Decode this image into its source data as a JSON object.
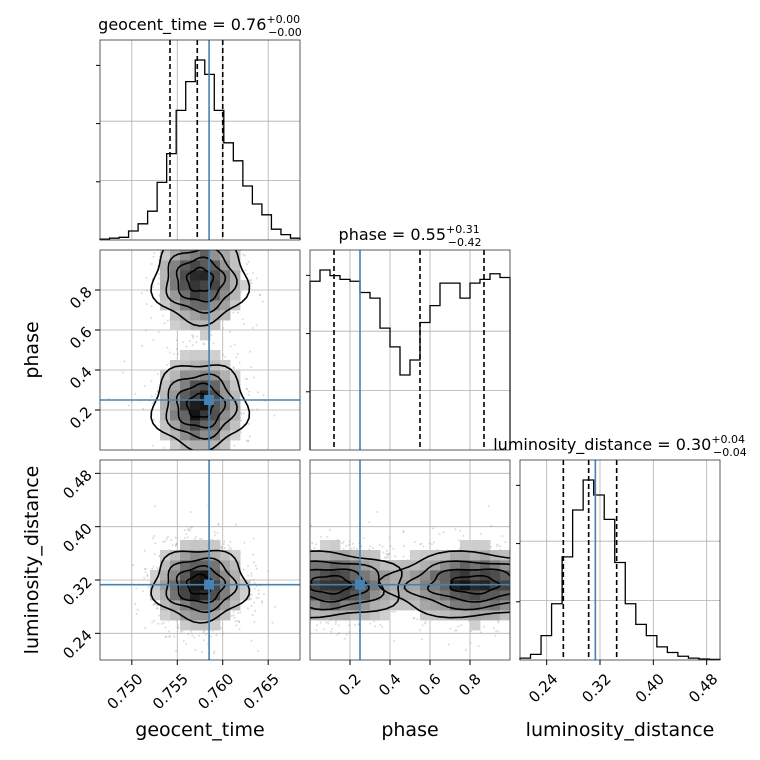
{
  "parameters": [
    {
      "name": "geocent_time",
      "median": "0.76",
      "plus": "+0.00",
      "minus": "−0.00",
      "lim": [
        0.7465,
        0.7685
      ],
      "ticks": [
        "0.750",
        "0.755",
        "0.760",
        "0.765"
      ],
      "tickvals": [
        0.75,
        0.755,
        0.76,
        0.765
      ],
      "truth": 0.7585,
      "quantiles": [
        0.7542,
        0.7572,
        0.76
      ]
    },
    {
      "name": "phase",
      "median": "0.55",
      "plus": "+0.31",
      "minus": "−0.42",
      "lim": [
        0.0,
        1.0
      ],
      "ticks": [
        "0.2",
        "0.4",
        "0.6",
        "0.8"
      ],
      "tickvals": [
        0.2,
        0.4,
        0.6,
        0.8
      ],
      "truth": 0.25,
      "quantiles": [
        0.12,
        0.55,
        0.87
      ]
    },
    {
      "name": "luminosity_distance",
      "median": "0.30",
      "plus": "+0.04",
      "minus": "−0.04",
      "lim": [
        0.2,
        0.5
      ],
      "ticks": [
        "0.24",
        "0.32",
        "0.40",
        "0.48"
      ],
      "tickvals": [
        0.24,
        0.32,
        0.4,
        0.48
      ],
      "truth": 0.313,
      "quantiles": [
        0.265,
        0.303,
        0.345
      ]
    }
  ],
  "chart_data": {
    "type": "corner",
    "colors": {
      "truth": "#4682b4",
      "contour": "#000000",
      "hist": "#000000",
      "grid": "#b0b0b0"
    },
    "grid": true,
    "histograms": [
      {
        "param": "geocent_time",
        "x": [
          0.7475,
          0.7485,
          0.7495,
          0.7505,
          0.7515,
          0.7525,
          0.7535,
          0.7545,
          0.7555,
          0.7565,
          0.7575,
          0.7585,
          0.7595,
          0.7605,
          0.7615,
          0.7625,
          0.7635,
          0.7645,
          0.7655,
          0.7665,
          0.7675
        ],
        "values": [
          0.5,
          1,
          1.5,
          5,
          9,
          16,
          32,
          48,
          72,
          88,
          100,
          92,
          72,
          54,
          44,
          30,
          20,
          14,
          6,
          3,
          1
        ]
      },
      {
        "param": "phase",
        "x": [
          0.025,
          0.075,
          0.125,
          0.175,
          0.225,
          0.275,
          0.325,
          0.375,
          0.425,
          0.475,
          0.525,
          0.575,
          0.625,
          0.675,
          0.725,
          0.775,
          0.825,
          0.875,
          0.925,
          0.975
        ],
        "values": [
          90,
          96,
          93,
          91,
          90,
          84,
          81,
          65,
          55,
          40,
          48,
          68,
          77,
          89,
          89,
          81,
          89,
          91,
          94,
          92
        ]
      },
      {
        "param": "luminosity_distance",
        "x": [
          0.2075,
          0.2225,
          0.2375,
          0.2525,
          0.2675,
          0.2825,
          0.2975,
          0.3125,
          0.3275,
          0.3425,
          0.3575,
          0.3725,
          0.3875,
          0.4025,
          0.4175,
          0.4325,
          0.4475,
          0.4625,
          0.4775
        ],
        "values": [
          1,
          3,
          13,
          30,
          55,
          80,
          96,
          88,
          75,
          52,
          30,
          19,
          13,
          7,
          4,
          2,
          1,
          0.5,
          0.3
        ]
      }
    ]
  }
}
